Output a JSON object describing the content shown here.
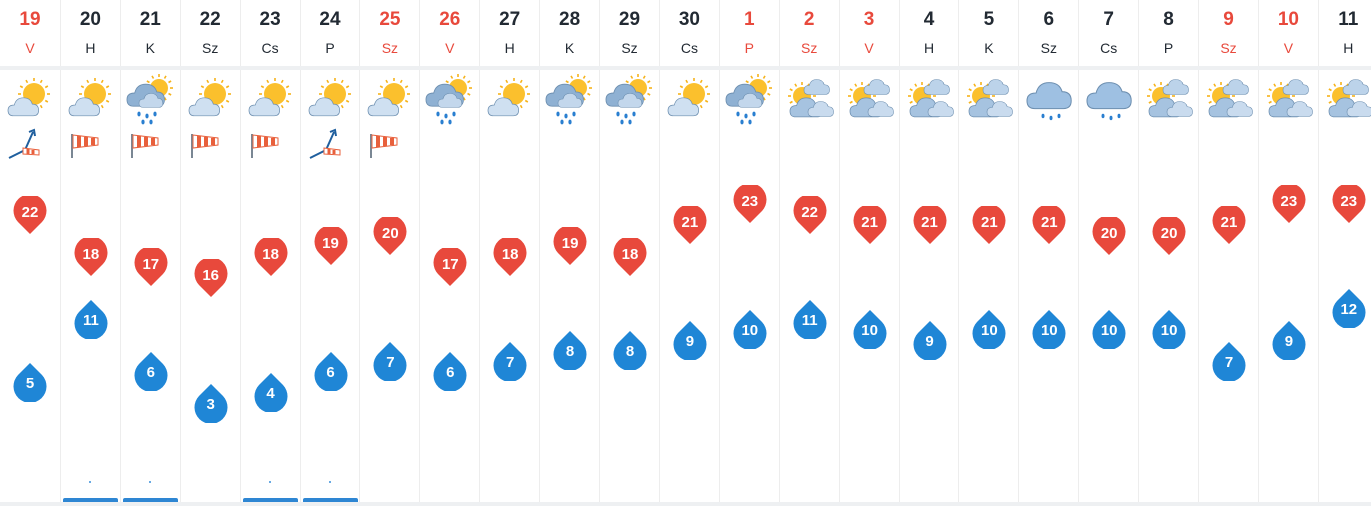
{
  "days": [
    {
      "num": "19",
      "name": "V",
      "weekend": true,
      "icon": "sun-cloud-icon",
      "wind": "wind-direction-icon",
      "max": "22",
      "min": "5",
      "rain": false
    },
    {
      "num": "20",
      "name": "H",
      "weekend": false,
      "icon": "sun-cloud-icon",
      "wind": "windsock-icon",
      "max": "18",
      "min": "11",
      "rain": true
    },
    {
      "num": "21",
      "name": "K",
      "weekend": false,
      "icon": "sun-cloud-rain-icon",
      "wind": "windsock-icon",
      "max": "17",
      "min": "6",
      "rain": true
    },
    {
      "num": "22",
      "name": "Sz",
      "weekend": false,
      "icon": "sun-cloud-icon",
      "wind": "windsock-icon",
      "max": "16",
      "min": "3",
      "rain": false
    },
    {
      "num": "23",
      "name": "Cs",
      "weekend": false,
      "icon": "sun-cloud-icon",
      "wind": "windsock-icon",
      "max": "18",
      "min": "4",
      "rain": true
    },
    {
      "num": "24",
      "name": "P",
      "weekend": false,
      "icon": "sun-cloud-icon",
      "wind": "wind-direction-icon",
      "max": "19",
      "min": "6",
      "rain": true
    },
    {
      "num": "25",
      "name": "Sz",
      "weekend": true,
      "icon": "sun-cloud-icon",
      "wind": "windsock-icon",
      "max": "20",
      "min": "7",
      "rain": false
    },
    {
      "num": "26",
      "name": "V",
      "weekend": true,
      "icon": "sun-cloud-rain-icon",
      "wind": "",
      "max": "17",
      "min": "6",
      "rain": false
    },
    {
      "num": "27",
      "name": "H",
      "weekend": false,
      "icon": "sun-cloud-icon",
      "wind": "",
      "max": "18",
      "min": "7",
      "rain": false
    },
    {
      "num": "28",
      "name": "K",
      "weekend": false,
      "icon": "sun-cloud-rain-icon",
      "wind": "",
      "max": "19",
      "min": "8",
      "rain": false
    },
    {
      "num": "29",
      "name": "Sz",
      "weekend": false,
      "icon": "sun-cloud-rain-icon",
      "wind": "",
      "max": "18",
      "min": "8",
      "rain": false
    },
    {
      "num": "30",
      "name": "Cs",
      "weekend": false,
      "icon": "sun-cloud-icon",
      "wind": "",
      "max": "21",
      "min": "9",
      "rain": false
    },
    {
      "num": "1",
      "name": "P",
      "weekend": true,
      "icon": "sun-cloud-rain-icon",
      "wind": "",
      "max": "23",
      "min": "10",
      "rain": false
    },
    {
      "num": "2",
      "name": "Sz",
      "weekend": true,
      "icon": "sun-clouds-icon",
      "wind": "",
      "max": "22",
      "min": "11",
      "rain": false
    },
    {
      "num": "3",
      "name": "V",
      "weekend": true,
      "icon": "sun-clouds-icon",
      "wind": "",
      "max": "21",
      "min": "10",
      "rain": false
    },
    {
      "num": "4",
      "name": "H",
      "weekend": false,
      "icon": "sun-clouds-icon",
      "wind": "",
      "max": "21",
      "min": "9",
      "rain": false
    },
    {
      "num": "5",
      "name": "K",
      "weekend": false,
      "icon": "sun-clouds-icon",
      "wind": "",
      "max": "21",
      "min": "10",
      "rain": false
    },
    {
      "num": "6",
      "name": "Sz",
      "weekend": false,
      "icon": "cloud-rain-icon",
      "wind": "",
      "max": "21",
      "min": "10",
      "rain": false
    },
    {
      "num": "7",
      "name": "Cs",
      "weekend": false,
      "icon": "cloud-rain-icon",
      "wind": "",
      "max": "20",
      "min": "10",
      "rain": false
    },
    {
      "num": "8",
      "name": "P",
      "weekend": false,
      "icon": "sun-clouds-icon",
      "wind": "",
      "max": "20",
      "min": "10",
      "rain": false
    },
    {
      "num": "9",
      "name": "Sz",
      "weekend": true,
      "icon": "sun-clouds-icon",
      "wind": "",
      "max": "21",
      "min": "7",
      "rain": false
    },
    {
      "num": "10",
      "name": "V",
      "weekend": true,
      "icon": "sun-clouds-icon",
      "wind": "",
      "max": "23",
      "min": "9",
      "rain": false
    },
    {
      "num": "11",
      "name": "H",
      "weekend": false,
      "icon": "sun-clouds-icon",
      "wind": "",
      "max": "23",
      "min": "12",
      "rain": false
    }
  ],
  "colors": {
    "max_pin": "#e8493c",
    "min_drop": "#1f86d6",
    "weekend_text": "#e8493c",
    "text": "#222a33"
  }
}
